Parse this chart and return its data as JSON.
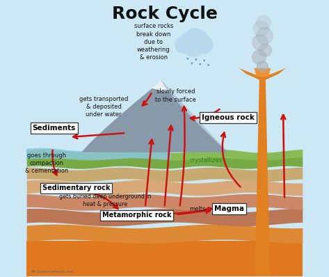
{
  "title": "Rock Cycle",
  "title_fontsize": 18,
  "title_fontweight": "bold",
  "watermark": "☘ ScienceFacts.net",
  "labels": {
    "sediments": "Sediments",
    "sedimentary": "Sedimentary rock",
    "metamorphic": "Metamorphic rock",
    "igneous": "Igneous rock",
    "magma": "Magma"
  },
  "annotations": {
    "weathering": "surface rocks\nbreak down\ndue to\nweathering\n& erosion",
    "transport": "gets transported\n& deposited\nunder water",
    "compaction": "goes through\ncompaction\n& cementation",
    "buried": "gets buried deep underground in\nheat & pressure",
    "melts": "melts",
    "crystallizes": "crystallizes",
    "slowly_forced": "slowly forced\nto the surface"
  },
  "colors": {
    "arrow_red": "#cc1111",
    "sky": "#cce8f4",
    "mountain_gray": "#8899aa",
    "mountain_shadow": "#99aabb",
    "layer_green_surf": "#88bb55",
    "layer_green2": "#77aa44",
    "layer_tan": "#c8aa70",
    "layer_peach": "#d8a878",
    "layer_salmon": "#cc8866",
    "layer_brown": "#bb7755",
    "layer_orange": "#dd8833",
    "layer_deep": "#e07820",
    "water_color": "#88c4e0",
    "volcano_orange": "#e08020",
    "lava_bright": "#f09030",
    "smoke_gray": "#aab0b8",
    "cloud_blue": "#b8d8ec",
    "rain_blue": "#5588bb",
    "box_fill": "#ffffff",
    "box_edge": "#333333"
  }
}
